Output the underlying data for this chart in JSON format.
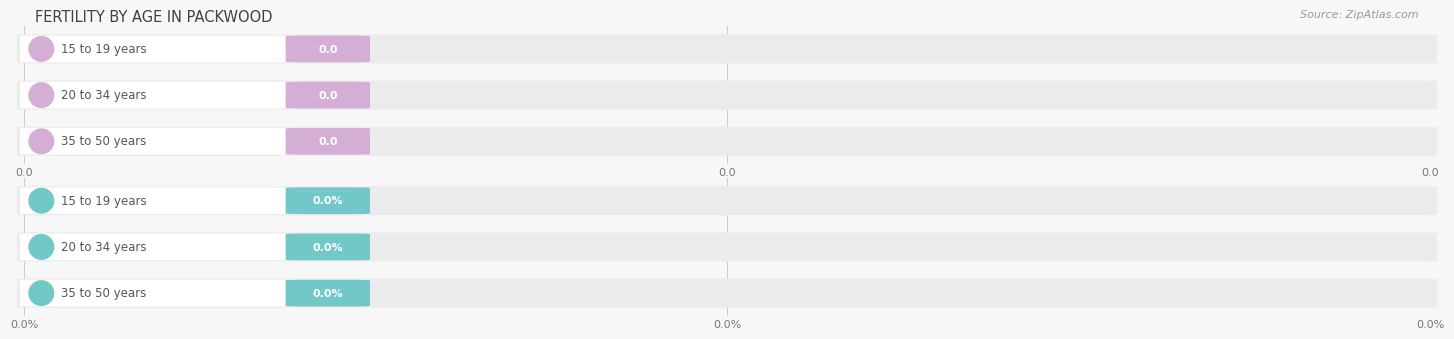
{
  "title": "FERTILITY BY AGE IN PACKWOOD",
  "source": "Source: ZipAtlas.com",
  "top_section": {
    "categories": [
      "15 to 19 years",
      "20 to 34 years",
      "35 to 50 years"
    ],
    "values": [
      0.0,
      0.0,
      0.0
    ],
    "bar_color": "#d4aed4",
    "value_label_color": "#c49ec4",
    "tick_labels": [
      "0.0",
      "0.0",
      "0.0"
    ]
  },
  "bottom_section": {
    "categories": [
      "15 to 19 years",
      "20 to 34 years",
      "35 to 50 years"
    ],
    "values": [
      0.0,
      0.0,
      0.0
    ],
    "bar_color": "#72c8c8",
    "value_label_color": "#62b8b8",
    "tick_labels": [
      "0.0%",
      "0.0%",
      "0.0%"
    ]
  },
  "bg_color": "#f7f7f7",
  "bar_bg_color": "#ebebeb",
  "bar_height": 0.62,
  "title_fontsize": 10.5,
  "label_fontsize": 8.5,
  "value_fontsize": 8,
  "tick_fontsize": 8,
  "source_fontsize": 8
}
